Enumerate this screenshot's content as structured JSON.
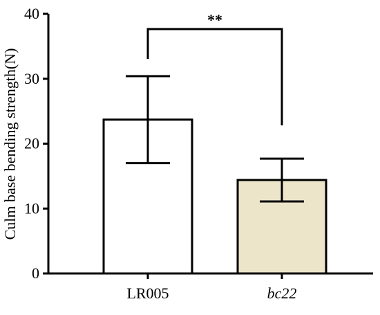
{
  "chart_data": {
    "type": "bar",
    "ylabel": "Culm base bending strength(N)",
    "categories": [
      "LR005",
      "bc22"
    ],
    "category_font_style": [
      "normal",
      "italic"
    ],
    "values": [
      23.7,
      14.4
    ],
    "errors": [
      6.7,
      3.3
    ],
    "colors": [
      "#ffffff",
      "#ede5c9"
    ],
    "ylim": [
      0,
      40
    ],
    "yticks": [
      0,
      10,
      20,
      30,
      40
    ],
    "annotation": "**"
  }
}
